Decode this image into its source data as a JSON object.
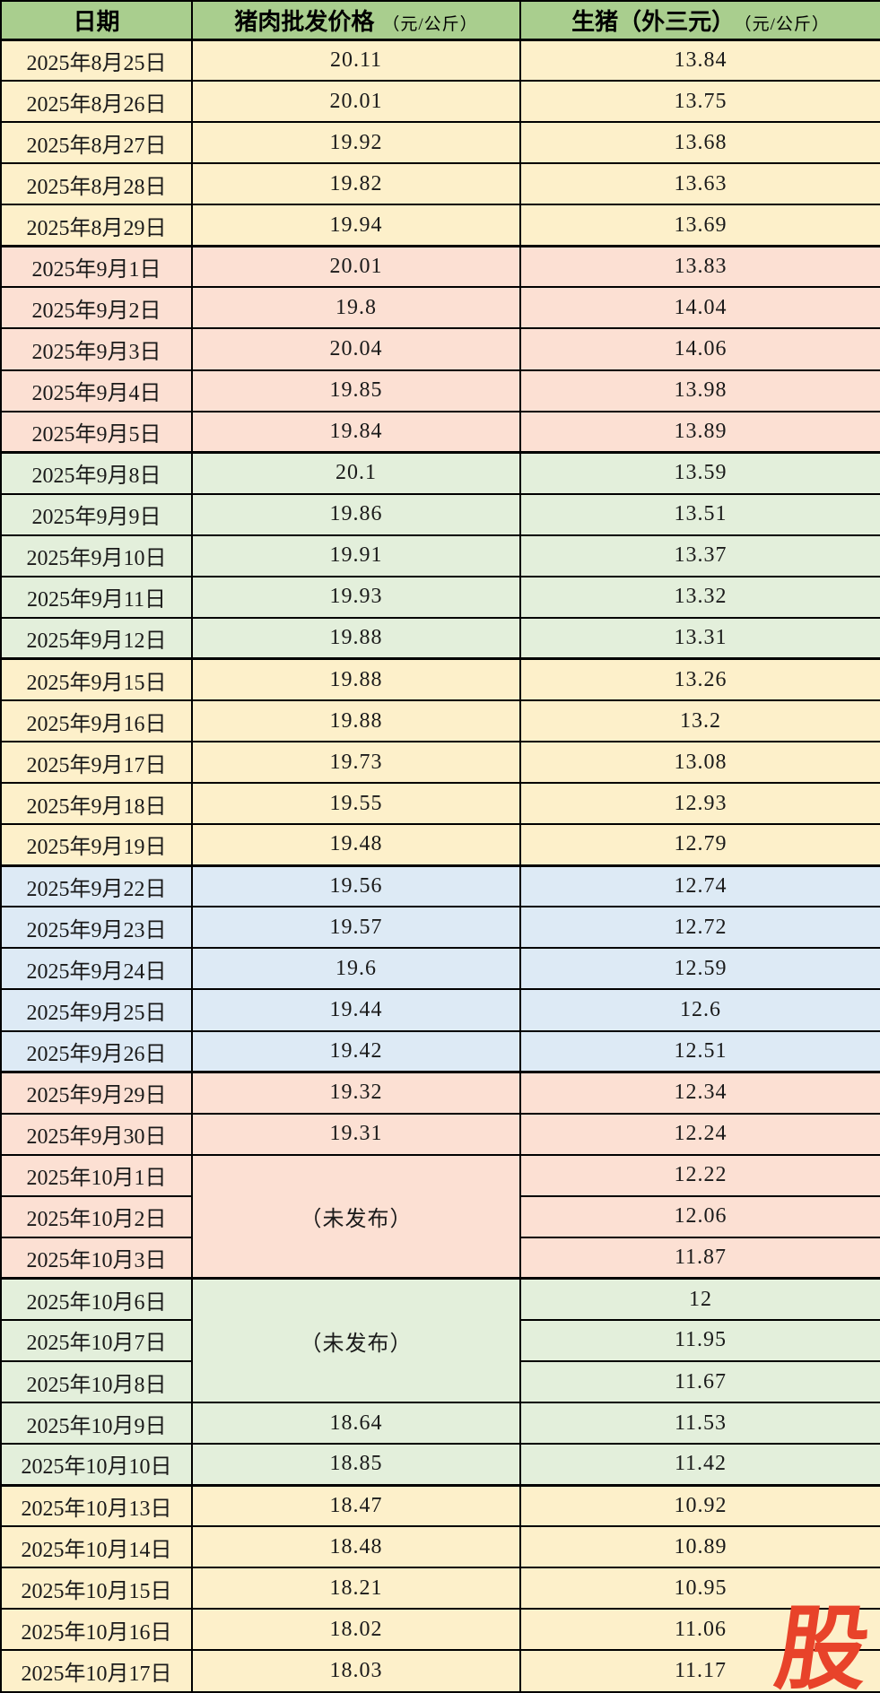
{
  "watermark": {
    "text": "股"
  },
  "not_published_label": "（未发布）",
  "colors": {
    "header_bg": "#A9CE8E",
    "border": "#000000",
    "watermark_red": "#E8432A",
    "groups": {
      "yellow": "#FDF0CA",
      "pink": "#FCE0D3",
      "green": "#E3EFDB",
      "blue": "#DDEAF5"
    }
  },
  "chart_data": {
    "type": "table",
    "columns": [
      {
        "label": "日期",
        "unit": ""
      },
      {
        "label": "猪肉批发价格",
        "unit": "（元/公斤）"
      },
      {
        "label": "生猪（外三元）",
        "unit": "（元/公斤）"
      }
    ],
    "rows": [
      {
        "date": "2025年8月25日",
        "pork": "20.11",
        "hog": "13.84",
        "group": "yellow"
      },
      {
        "date": "2025年8月26日",
        "pork": "20.01",
        "hog": "13.75",
        "group": "yellow"
      },
      {
        "date": "2025年8月27日",
        "pork": "19.92",
        "hog": "13.68",
        "group": "yellow"
      },
      {
        "date": "2025年8月28日",
        "pork": "19.82",
        "hog": "13.63",
        "group": "yellow"
      },
      {
        "date": "2025年8月29日",
        "pork": "19.94",
        "hog": "13.69",
        "group": "yellow"
      },
      {
        "date": "2025年9月1日",
        "pork": "20.01",
        "hog": "13.83",
        "group": "pink"
      },
      {
        "date": "2025年9月2日",
        "pork": "19.8",
        "hog": "14.04",
        "group": "pink"
      },
      {
        "date": "2025年9月3日",
        "pork": "20.04",
        "hog": "14.06",
        "group": "pink"
      },
      {
        "date": "2025年9月4日",
        "pork": "19.85",
        "hog": "13.98",
        "group": "pink"
      },
      {
        "date": "2025年9月5日",
        "pork": "19.84",
        "hog": "13.89",
        "group": "pink"
      },
      {
        "date": "2025年9月8日",
        "pork": "20.1",
        "hog": "13.59",
        "group": "green"
      },
      {
        "date": "2025年9月9日",
        "pork": "19.86",
        "hog": "13.51",
        "group": "green"
      },
      {
        "date": "2025年9月10日",
        "pork": "19.91",
        "hog": "13.37",
        "group": "green"
      },
      {
        "date": "2025年9月11日",
        "pork": "19.93",
        "hog": "13.32",
        "group": "green"
      },
      {
        "date": "2025年9月12日",
        "pork": "19.88",
        "hog": "13.31",
        "group": "green"
      },
      {
        "date": "2025年9月15日",
        "pork": "19.88",
        "hog": "13.26",
        "group": "yellow"
      },
      {
        "date": "2025年9月16日",
        "pork": "19.88",
        "hog": "13.2",
        "group": "yellow"
      },
      {
        "date": "2025年9月17日",
        "pork": "19.73",
        "hog": "13.08",
        "group": "yellow"
      },
      {
        "date": "2025年9月18日",
        "pork": "19.55",
        "hog": "12.93",
        "group": "yellow"
      },
      {
        "date": "2025年9月19日",
        "pork": "19.48",
        "hog": "12.79",
        "group": "yellow"
      },
      {
        "date": "2025年9月22日",
        "pork": "19.56",
        "hog": "12.74",
        "group": "blue"
      },
      {
        "date": "2025年9月23日",
        "pork": "19.57",
        "hog": "12.72",
        "group": "blue"
      },
      {
        "date": "2025年9月24日",
        "pork": "19.6",
        "hog": "12.59",
        "group": "blue"
      },
      {
        "date": "2025年9月25日",
        "pork": "19.44",
        "hog": "12.6",
        "group": "blue"
      },
      {
        "date": "2025年9月26日",
        "pork": "19.42",
        "hog": "12.51",
        "group": "blue"
      },
      {
        "date": "2025年9月29日",
        "pork": "19.32",
        "hog": "12.34",
        "group": "pink"
      },
      {
        "date": "2025年9月30日",
        "pork": "19.31",
        "hog": "12.24",
        "group": "pink"
      },
      {
        "date": "2025年10月1日",
        "pork": "（未发布）",
        "pork_rowspan": 3,
        "hog": "12.22",
        "group": "pink"
      },
      {
        "date": "2025年10月2日",
        "pork": null,
        "hog": "12.06",
        "group": "pink"
      },
      {
        "date": "2025年10月3日",
        "pork": null,
        "hog": "11.87",
        "group": "pink"
      },
      {
        "date": "2025年10月6日",
        "pork": "（未发布）",
        "pork_rowspan": 3,
        "hog": "12",
        "group": "green"
      },
      {
        "date": "2025年10月7日",
        "pork": null,
        "hog": "11.95",
        "group": "green"
      },
      {
        "date": "2025年10月8日",
        "pork": null,
        "hog": "11.67",
        "group": "green"
      },
      {
        "date": "2025年10月9日",
        "pork": "18.64",
        "hog": "11.53",
        "group": "green"
      },
      {
        "date": "2025年10月10日",
        "pork": "18.85",
        "hog": "11.42",
        "group": "green"
      },
      {
        "date": "2025年10月13日",
        "pork": "18.47",
        "hog": "10.92",
        "group": "yellow"
      },
      {
        "date": "2025年10月14日",
        "pork": "18.48",
        "hog": "10.89",
        "group": "yellow"
      },
      {
        "date": "2025年10月15日",
        "pork": "18.21",
        "hog": "10.95",
        "group": "yellow"
      },
      {
        "date": "2025年10月16日",
        "pork": "18.02",
        "hog": "11.06",
        "group": "yellow"
      },
      {
        "date": "2025年10月17日",
        "pork": "18.03",
        "hog": "11.17",
        "group": "yellow"
      }
    ]
  }
}
